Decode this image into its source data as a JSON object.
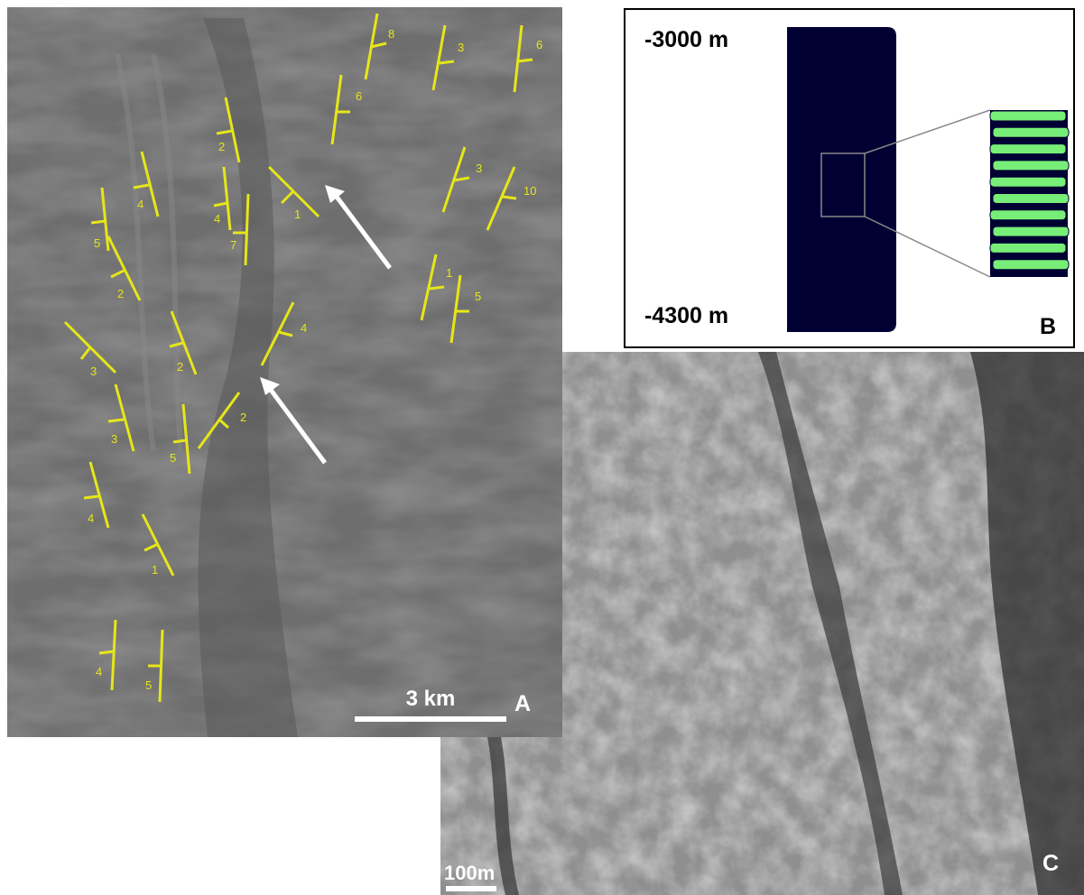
{
  "panel_a": {
    "label": "A",
    "scale_bar": "3 km",
    "dips": [
      8,
      3,
      6,
      6,
      2,
      4,
      1,
      4,
      7,
      3,
      10,
      5,
      2,
      1,
      5,
      4,
      3,
      2,
      3,
      2,
      5,
      4,
      1,
      4,
      5
    ]
  },
  "panel_b": {
    "label": "B",
    "top_elevation": "-3000 m",
    "bottom_elevation": "-4300 m"
  },
  "panel_c": {
    "label": "C",
    "scale_bar": "100m"
  }
}
